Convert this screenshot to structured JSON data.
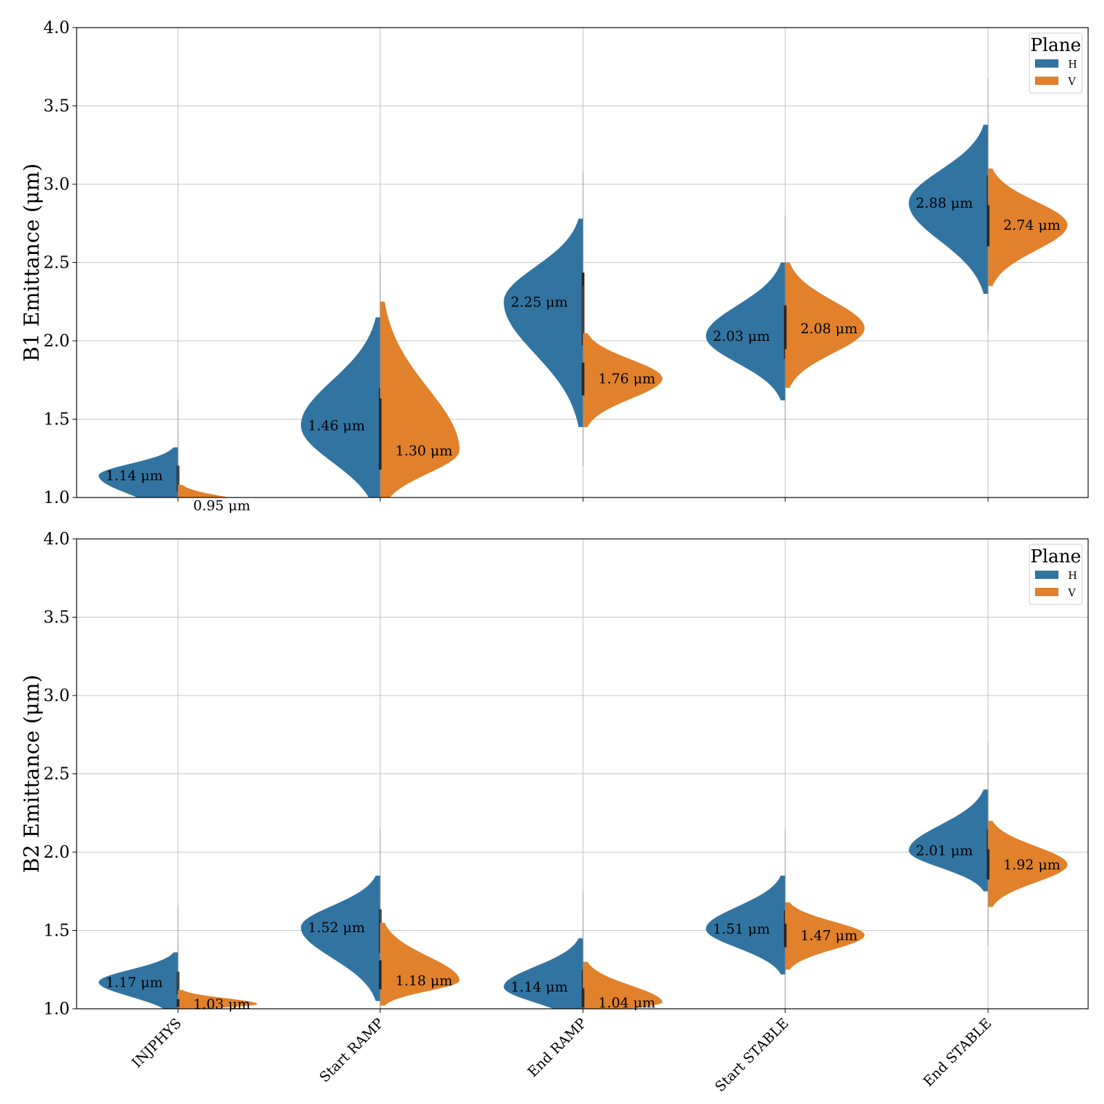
{
  "colors": {
    "H": "#3274a1",
    "V": "#e1812c",
    "median_line": "#2b2b2b",
    "grid": "#b0b0b0"
  },
  "chart_data": [
    {
      "type": "violin",
      "variant": "split",
      "ylabel": "B1 Emittance (μm)",
      "ylim": [
        1.0,
        4.0
      ],
      "yticks": [
        "1.0",
        "1.5",
        "2.0",
        "2.5",
        "3.0",
        "3.5",
        "4.0"
      ],
      "categories": [
        "INJPHYS",
        "Start RAMP",
        "End RAMP",
        "Start STABLE",
        "End STABLE"
      ],
      "show_category_labels": false,
      "grid": true,
      "legend": {
        "title": "Plane",
        "placement": "top-right",
        "entries": [
          "H",
          "V"
        ]
      },
      "series": [
        {
          "name": "H",
          "side": "left",
          "medians": [
            1.14,
            1.46,
            2.25,
            2.03,
            2.88
          ],
          "median_labels": [
            "1.14 μm",
            "1.46 μm",
            "2.25 μm",
            "2.03 μm",
            "2.88 μm"
          ],
          "ranges": [
            [
              0.85,
              1.32
            ],
            [
              0.9,
              2.15
            ],
            [
              1.45,
              2.78
            ],
            [
              1.62,
              2.5
            ],
            [
              2.3,
              3.38
            ]
          ]
        },
        {
          "name": "V",
          "side": "right",
          "medians": [
            0.95,
            1.3,
            1.76,
            2.08,
            2.74
          ],
          "median_labels": [
            "0.95 μm",
            "1.30 μm",
            "1.76 μm",
            "2.08 μm",
            "2.74 μm"
          ],
          "ranges": [
            [
              0.9,
              1.08
            ],
            [
              0.95,
              2.25
            ],
            [
              1.45,
              2.05
            ],
            [
              1.7,
              2.5
            ],
            [
              2.35,
              3.1
            ]
          ]
        }
      ]
    },
    {
      "type": "violin",
      "variant": "split",
      "ylabel": "B2 Emittance (μm)",
      "ylim": [
        1.0,
        4.0
      ],
      "yticks": [
        "1.0",
        "1.5",
        "2.0",
        "2.5",
        "3.0",
        "3.5",
        "4.0"
      ],
      "categories": [
        "INJPHYS",
        "Start RAMP",
        "End RAMP",
        "Start STABLE",
        "End STABLE"
      ],
      "show_category_labels": true,
      "grid": true,
      "legend": {
        "title": "Plane",
        "placement": "top-right",
        "entries": [
          "H",
          "V"
        ]
      },
      "series": [
        {
          "name": "H",
          "side": "left",
          "medians": [
            1.17,
            1.52,
            1.14,
            1.51,
            2.01
          ],
          "median_labels": [
            "1.17 μm",
            "1.52 μm",
            "1.14 μm",
            "1.51 μm",
            "2.01 μm"
          ],
          "ranges": [
            [
              0.95,
              1.36
            ],
            [
              1.05,
              1.85
            ],
            [
              0.9,
              1.45
            ],
            [
              1.22,
              1.85
            ],
            [
              1.75,
              2.4
            ]
          ]
        },
        {
          "name": "V",
          "side": "right",
          "medians": [
            1.03,
            1.18,
            1.04,
            1.47,
            1.92
          ],
          "median_labels": [
            "1.03 μm",
            "1.18 μm",
            "1.04 μm",
            "1.47 μm",
            "1.92 μm"
          ],
          "ranges": [
            [
              0.98,
              1.12
            ],
            [
              1.02,
              1.55
            ],
            [
              0.95,
              1.3
            ],
            [
              1.25,
              1.68
            ],
            [
              1.65,
              2.2
            ]
          ]
        }
      ]
    }
  ]
}
